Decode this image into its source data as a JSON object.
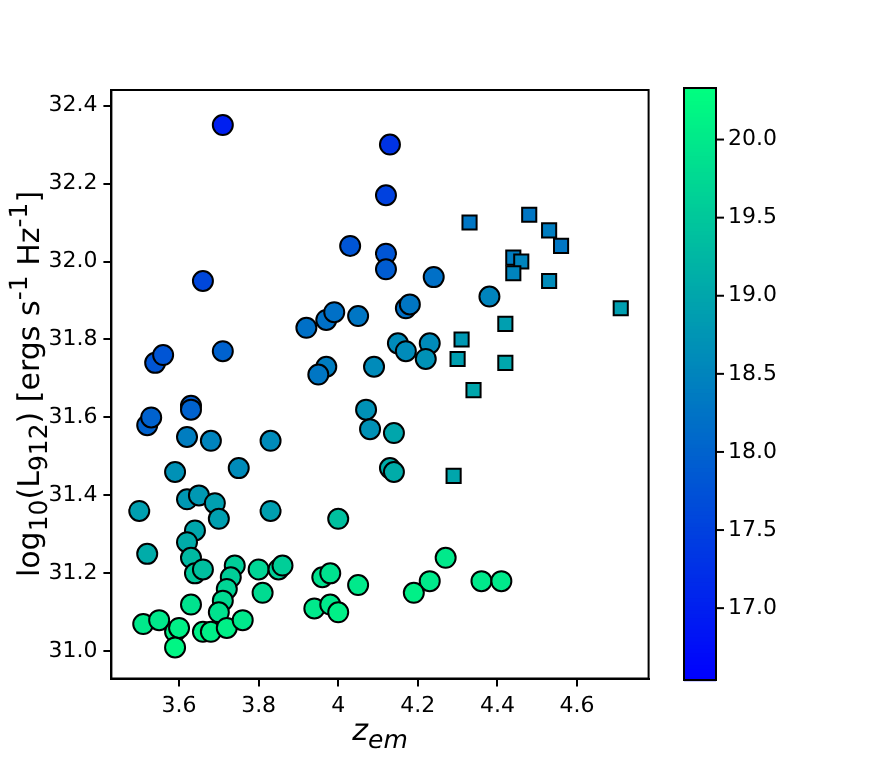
{
  "chart_data": {
    "type": "scatter",
    "xlabel": "z$_{em}$",
    "ylabel": "log$_{10}$(L$_{912}$) [ergs s$^{-1}$ Hz$^{-1}$]",
    "xlim": [
      3.43,
      4.78
    ],
    "ylim": [
      30.93,
      32.44
    ],
    "xticks": [
      3.6,
      3.8,
      4.0,
      4.2,
      4.4,
      4.6
    ],
    "yticks": [
      {
        "value": 31,
        "label": "31.0"
      },
      31.2,
      31.4,
      31.6,
      31.8,
      {
        "value": 32,
        "label": "32.0"
      },
      32.2,
      32.4
    ],
    "clim": [
      16.54,
      20.33
    ],
    "cticks": [
      {
        "value": 17,
        "label": "17.0"
      },
      17.5,
      {
        "value": 18,
        "label": "18.0"
      },
      18.5,
      {
        "value": 19,
        "label": "19.0"
      },
      19.5,
      {
        "value": 20,
        "label": "20.0"
      }
    ],
    "grid": false,
    "legend": false,
    "series": [
      {
        "marker": "circle",
        "x": [
          3.71,
          4.13,
          4.12,
          4.03,
          4.12,
          4.12,
          3.66,
          4.17,
          3.92,
          3.97,
          3.99,
          4.05,
          3.54,
          3.56,
          3.71,
          4.15,
          4.17,
          3.97,
          3.95,
          4.09,
          4.24,
          4.18,
          4.38,
          4.23,
          4.22,
          4.14,
          4.13,
          4.14,
          4.27,
          4.23,
          4.19,
          4.36,
          4.41,
          3.63,
          3.63,
          3.52,
          3.53,
          3.62,
          3.68,
          3.83,
          4.07,
          4.08,
          3.75,
          3.59,
          3.62,
          3.65,
          3.69,
          3.7,
          3.83,
          3.5,
          4.0,
          3.64,
          3.62,
          3.52,
          3.63,
          3.64,
          3.66,
          3.74,
          3.73,
          3.72,
          3.71,
          3.7,
          3.8,
          3.81,
          3.85,
          3.86,
          3.96,
          3.98,
          4.05,
          3.94,
          3.98,
          4.0,
          3.63,
          3.51,
          3.55,
          3.59,
          3.6,
          3.59,
          3.66,
          3.68,
          3.72,
          3.76
        ],
        "values": [
          32.35,
          32.3,
          32.17,
          32.04,
          32.02,
          31.98,
          31.95,
          31.88,
          31.83,
          31.85,
          31.87,
          31.86,
          31.74,
          31.76,
          31.77,
          31.79,
          31.77,
          31.73,
          31.71,
          31.73,
          31.96,
          31.89,
          31.91,
          31.79,
          31.75,
          31.56,
          31.47,
          31.46,
          31.24,
          31.18,
          31.15,
          31.18,
          31.18,
          31.63,
          31.62,
          31.58,
          31.6,
          31.55,
          31.54,
          31.54,
          31.62,
          31.57,
          31.47,
          31.46,
          31.39,
          31.4,
          31.38,
          31.34,
          31.36,
          31.36,
          31.34,
          31.31,
          31.28,
          31.25,
          31.24,
          31.2,
          31.21,
          31.22,
          31.19,
          31.16,
          31.13,
          31.1,
          31.21,
          31.15,
          31.21,
          31.22,
          31.19,
          31.2,
          31.17,
          31.11,
          31.12,
          31.1,
          31.12,
          31.07,
          31.08,
          31.05,
          31.06,
          31.01,
          31.05,
          31.05,
          31.06,
          31.08
        ],
        "colors": [
          "#001ff0",
          "#0033e5",
          "#0041df",
          "#0055d5",
          "#0055d5",
          "#005cd1",
          "#0047db",
          "#0070c7",
          "#0070c7",
          "#0070c7",
          "#0070c7",
          "#0076c4",
          "#0055d5",
          "#0055d5",
          "#0062ce",
          "#008bba",
          "#008bba",
          "#007dc0",
          "#0076c4",
          "#008bba",
          "#0070c7",
          "#0076c4",
          "#0084bd",
          "#008bba",
          "#0091b6",
          "#00a6ac",
          "#00aca9",
          "#00aca9",
          "#00e98b",
          "#00e98b",
          "#00f087",
          "#00e98b",
          "#00e98b",
          "#005cd1",
          "#0062ce",
          "#0062ce",
          "#0062ce",
          "#007dc0",
          "#0084bd",
          "#008bba",
          "#0091b6",
          "#0091b6",
          "#008bba",
          "#0091b6",
          "#0098b3",
          "#0098b3",
          "#009fb0",
          "#009fb0",
          "#009fb0",
          "#009fb0",
          "#00c09f",
          "#00a6ac",
          "#00aca9",
          "#00aca9",
          "#00baa2",
          "#00c79b",
          "#00c09f",
          "#00ce98",
          "#00ce98",
          "#00d595",
          "#00db91",
          "#00e28e",
          "#00d595",
          "#00db91",
          "#00ce98",
          "#00ce98",
          "#00e28e",
          "#00e28e",
          "#00e98b",
          "#00e98b",
          "#00e98b",
          "#00f087",
          "#00e28e",
          "#00e98b",
          "#00e98b",
          "#00f087",
          "#00f087",
          "#00f684",
          "#00f087",
          "#00f087",
          "#00f087",
          "#00e98b"
        ]
      },
      {
        "marker": "square",
        "x": [
          4.33,
          4.48,
          4.53,
          4.56,
          4.44,
          4.46,
          4.44,
          4.53,
          4.71,
          4.42,
          4.31,
          4.3,
          4.42,
          4.34,
          4.29
        ],
        "values": [
          32.1,
          32.12,
          32.08,
          32.04,
          32.01,
          32.0,
          31.97,
          31.95,
          31.88,
          31.84,
          31.8,
          31.75,
          31.74,
          31.67,
          31.45
        ],
        "colors": [
          "#0076c4",
          "#0076c4",
          "#007dc0",
          "#0076c4",
          "#007dc0",
          "#0084bd",
          "#0084bd",
          "#008bba",
          "#009fb0",
          "#009fb0",
          "#0098b3",
          "#009fb0",
          "#00a6ac",
          "#00a6ac",
          "#00a6ac"
        ]
      }
    ]
  }
}
